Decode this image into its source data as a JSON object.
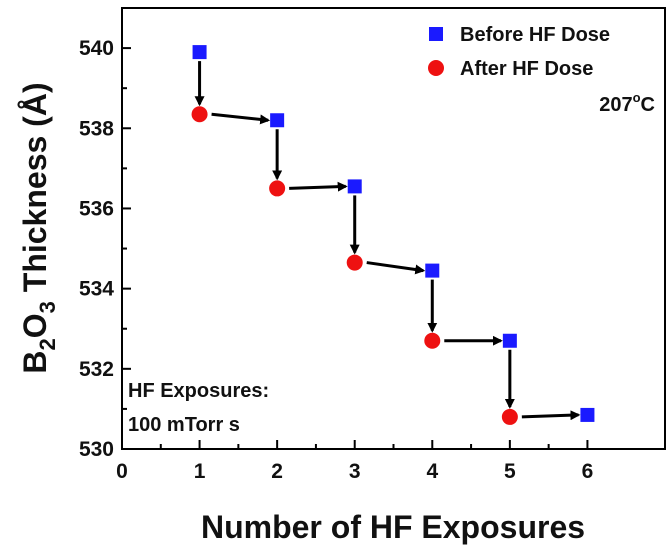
{
  "chart_data": {
    "type": "scatter",
    "xlabel": "Number of HF Exposures",
    "ylabel_parts": {
      "b": "B",
      "sub1": "2",
      "o": "O",
      "sub2": "3",
      "rest": " Thickness (Å)"
    },
    "xlim": [
      0,
      7
    ],
    "ylim": [
      530,
      541
    ],
    "xticks": [
      0,
      1,
      2,
      3,
      4,
      5,
      6
    ],
    "yticks": [
      530,
      532,
      534,
      536,
      538,
      540
    ],
    "series": [
      {
        "name": "Before HF Dose",
        "marker": "square",
        "color": "#1a1aff",
        "x": [
          1,
          2,
          3,
          4,
          5,
          6
        ],
        "y": [
          539.9,
          538.2,
          536.55,
          534.45,
          532.7,
          530.85
        ]
      },
      {
        "name": "After HF Dose",
        "marker": "circle",
        "color": "#ee1111",
        "x": [
          1,
          2,
          3,
          4,
          5
        ],
        "y": [
          538.35,
          536.5,
          534.65,
          532.7,
          530.8
        ]
      }
    ],
    "temperature_label": {
      "value": "207",
      "degree": "o",
      "unit": "C"
    },
    "annotation": [
      "HF Exposures:",
      "100 mTorr s"
    ]
  }
}
